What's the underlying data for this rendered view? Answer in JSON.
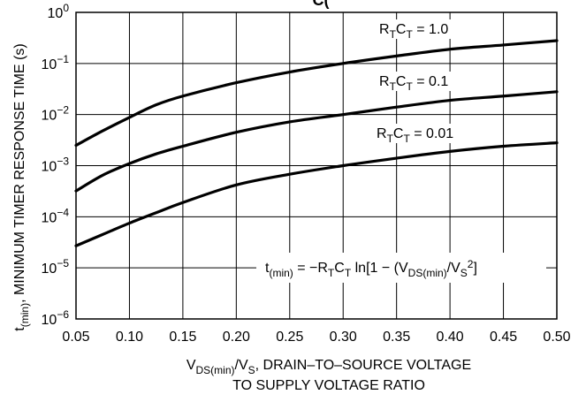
{
  "chart_data": {
    "type": "line",
    "title_fragment": "C(",
    "xlabel_line1": "VDS(min)/VS, DRAIN–TO–SOURCE VOLTAGE",
    "xlabel_line2": "TO SUPPLY VOLTAGE RATIO",
    "ylabel": "t(min), MINIMUM TIMER RESPONSE TIME (s)",
    "y_scale": "log",
    "xlim": [
      0.05,
      0.5
    ],
    "ylim": [
      1e-06,
      1
    ],
    "grid": true,
    "x_ticks": [
      "0.05",
      "0.10",
      "0.15",
      "0.20",
      "0.25",
      "0.30",
      "0.35",
      "0.40",
      "0.45",
      "0.50"
    ],
    "y_ticks": [
      {
        "value": 1e-06,
        "label_base": "10",
        "label_exp": "−6"
      },
      {
        "value": 1e-05,
        "label_base": "10",
        "label_exp": "−5"
      },
      {
        "value": 0.0001,
        "label_base": "10",
        "label_exp": "−4"
      },
      {
        "value": 0.001,
        "label_base": "10",
        "label_exp": "−3"
      },
      {
        "value": 0.01,
        "label_base": "10",
        "label_exp": "−2"
      },
      {
        "value": 0.1,
        "label_base": "10",
        "label_exp": "−1"
      },
      {
        "value": 1,
        "label_base": "10",
        "label_exp": "0"
      }
    ],
    "formula": "t(min) = −RTCT ln[1 − (VDS(min)/VS2]",
    "series": [
      {
        "name": "RTCT = 1.0",
        "x": [
          0.05,
          0.075,
          0.1,
          0.125,
          0.15,
          0.2,
          0.25,
          0.3,
          0.35,
          0.4,
          0.45,
          0.5
        ],
        "y": [
          0.0025,
          0.0048,
          0.0088,
          0.0155,
          0.023,
          0.042,
          0.068,
          0.1,
          0.14,
          0.19,
          0.23,
          0.28
        ]
      },
      {
        "name": "RTCT = 0.1",
        "x": [
          0.05,
          0.075,
          0.1,
          0.125,
          0.15,
          0.2,
          0.25,
          0.3,
          0.35,
          0.4,
          0.45,
          0.5
        ],
        "y": [
          0.00032,
          0.00065,
          0.0011,
          0.0017,
          0.0024,
          0.0045,
          0.0072,
          0.01,
          0.014,
          0.019,
          0.023,
          0.028
        ]
      },
      {
        "name": "RTCT = 0.01",
        "x": [
          0.05,
          0.075,
          0.1,
          0.125,
          0.15,
          0.2,
          0.25,
          0.3,
          0.35,
          0.4,
          0.45,
          0.5
        ],
        "y": [
          2.7e-05,
          4.5e-05,
          7.5e-05,
          0.00012,
          0.00019,
          0.00042,
          0.00068,
          0.001,
          0.0014,
          0.0019,
          0.0024,
          0.0028
        ]
      }
    ],
    "series_labels": [
      {
        "base": "R",
        "sub1": "T",
        "mid": "C",
        "sub2": "T",
        "tail": " = 1.0"
      },
      {
        "base": "R",
        "sub1": "T",
        "mid": "C",
        "sub2": "T",
        "tail": " = 0.1"
      },
      {
        "base": "R",
        "sub1": "T",
        "mid": "C",
        "sub2": "T",
        "tail": " = 0.01"
      }
    ]
  }
}
